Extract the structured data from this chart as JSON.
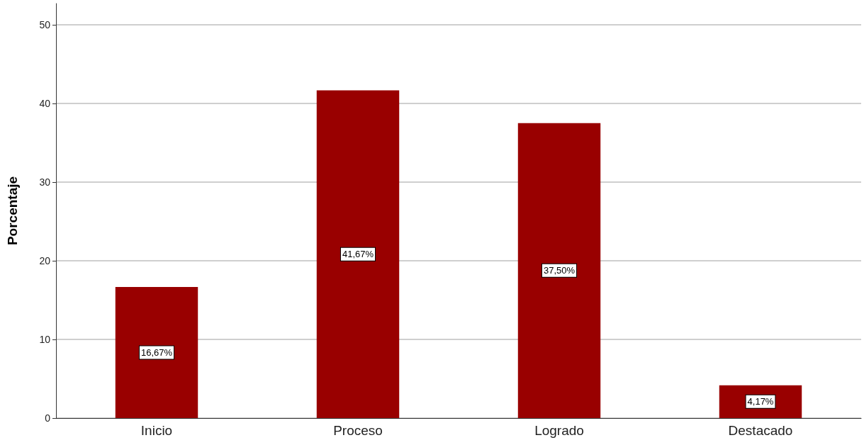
{
  "chart_data": {
    "type": "bar",
    "ylabel": "Porcentaje",
    "categories": [
      "Inicio",
      "Proceso",
      "Logrado",
      "Destacado"
    ],
    "values": [
      16.67,
      41.67,
      37.5,
      4.17
    ],
    "value_labels": [
      "16,67%",
      "41,67%",
      "37,50%",
      "4,17%"
    ],
    "color": "#990000",
    "ylim": [
      0,
      52.7
    ],
    "yticks": [
      0,
      10,
      20,
      30,
      40,
      50
    ],
    "grid": "y"
  }
}
